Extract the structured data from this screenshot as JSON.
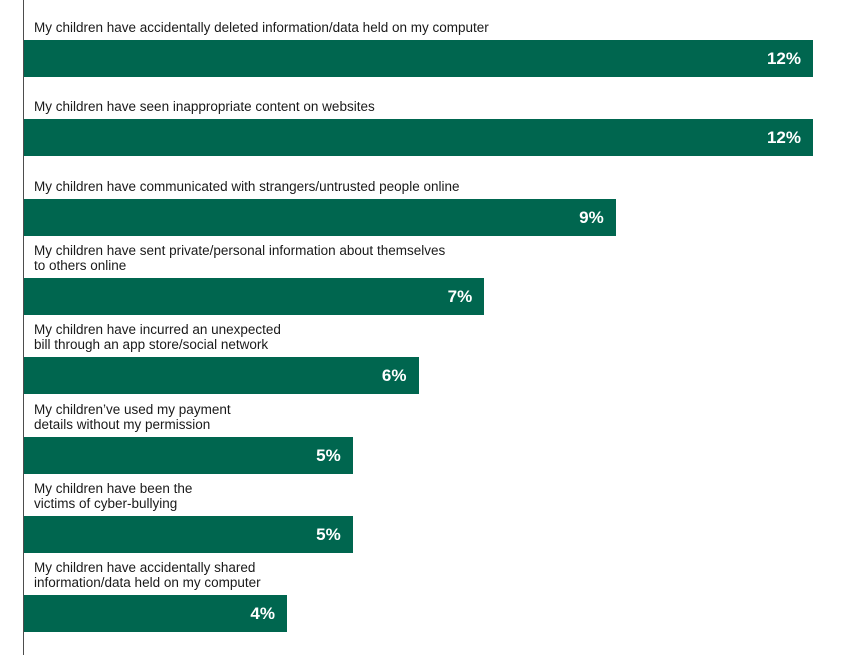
{
  "colors": {
    "bar": "#00664f",
    "label": "#1a1a1a",
    "value": "#ffffff"
  },
  "chart_data": {
    "type": "bar",
    "orientation": "horizontal",
    "title": "",
    "xlabel": "",
    "ylabel": "",
    "xlim": [
      0,
      12
    ],
    "grid": false,
    "legend": "none",
    "categories": [
      "My children have accidentally deleted information/data held on my computer",
      "My children have seen inappropriate content on websites",
      "My children have communicated with strangers/untrusted people online",
      "My children have sent private/personal information about themselves\nto others online",
      "My children have incurred an unexpected\nbill through an app store/social network",
      "My children’ve used my payment\ndetails without my permission",
      "My children have been the\nvictims of cyber-bullying",
      "My children have accidentally shared\ninformation/data held on my computer"
    ],
    "values": [
      12,
      12,
      9,
      7,
      6,
      5,
      5,
      4
    ],
    "value_labels": [
      "12%",
      "12%",
      "9%",
      "7%",
      "6%",
      "5%",
      "5%",
      "4%"
    ]
  }
}
